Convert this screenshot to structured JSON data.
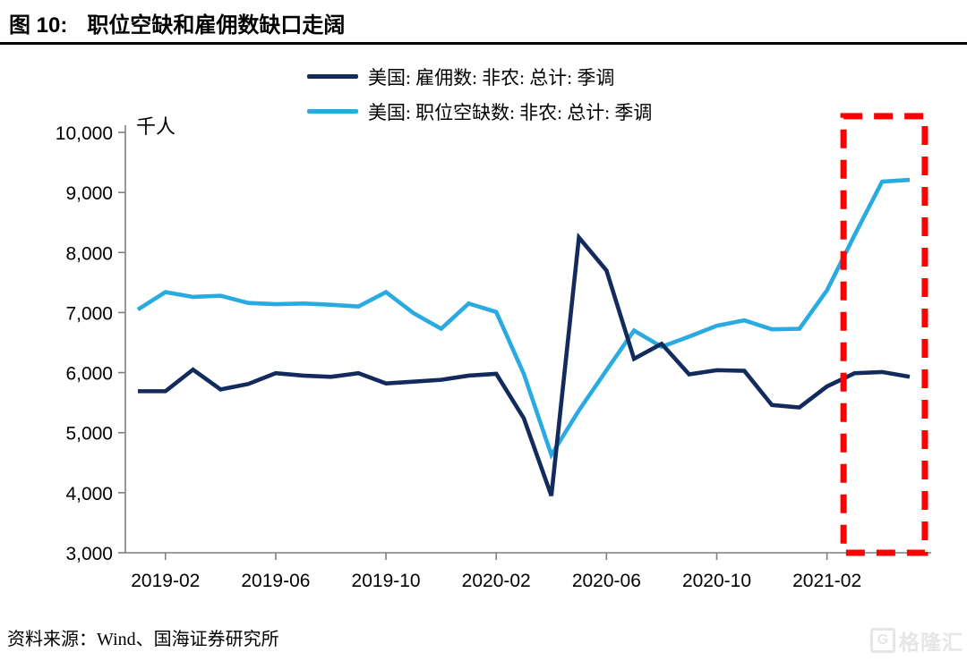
{
  "header": {
    "figure_label": "图 10:",
    "title": "职位空缺和雇佣数缺口走阔"
  },
  "legend": [
    {
      "label": "美国: 雇佣数: 非农: 总计: 季调",
      "color": "#122B5C"
    },
    {
      "label": "美国: 职位空缺数: 非农: 总计: 季调",
      "color": "#29ABE2"
    }
  ],
  "chart_data": {
    "type": "line",
    "title": "职位空缺和雇佣数缺口走阔",
    "unit_label": "千人",
    "xlabel": "",
    "ylabel": "千人",
    "ylim": [
      3000,
      10000
    ],
    "y_ticks": [
      3000,
      4000,
      5000,
      6000,
      7000,
      8000,
      9000,
      10000
    ],
    "grid": false,
    "legend_position": "top-center",
    "x": [
      "2019-01",
      "2019-02",
      "2019-03",
      "2019-04",
      "2019-05",
      "2019-06",
      "2019-07",
      "2019-08",
      "2019-09",
      "2019-10",
      "2019-11",
      "2019-12",
      "2020-01",
      "2020-02",
      "2020-03",
      "2020-04",
      "2020-05",
      "2020-06",
      "2020-07",
      "2020-08",
      "2020-09",
      "2020-10",
      "2020-11",
      "2020-12",
      "2021-01",
      "2021-02",
      "2021-03",
      "2021-04",
      "2021-05"
    ],
    "x_tick_labels": [
      "2019-02",
      "2019-06",
      "2019-10",
      "2020-02",
      "2020-06",
      "2020-10",
      "2021-02"
    ],
    "x_tick_indices": [
      1,
      5,
      9,
      13,
      17,
      21,
      25
    ],
    "series": [
      {
        "name": "美国: 职位空缺数: 非农: 总计: 季调",
        "color": "#29ABE2",
        "values": [
          7050,
          7340,
          7260,
          7280,
          7160,
          7140,
          7150,
          7130,
          7100,
          7340,
          6990,
          6730,
          7150,
          7010,
          5980,
          4630,
          5370,
          6040,
          6700,
          6430,
          6600,
          6780,
          6870,
          6720,
          6730,
          7370,
          8290,
          9180,
          9210
        ]
      },
      {
        "name": "美国: 雇佣数: 非农: 总计: 季调",
        "color": "#122B5C",
        "values": [
          5690,
          5690,
          6050,
          5720,
          5810,
          5990,
          5950,
          5930,
          5990,
          5820,
          5850,
          5880,
          5950,
          5980,
          5240,
          3950,
          8250,
          7700,
          6230,
          6480,
          5970,
          6040,
          6030,
          5460,
          5420,
          5770,
          5990,
          6010,
          5930
        ]
      }
    ],
    "annotation": {
      "shape": "dashed-rect",
      "color": "#FF0000",
      "x_from_index": 25.6,
      "x_to_index": 28.55,
      "y_from": 3000,
      "y_to": 10270
    }
  },
  "footer": {
    "source": "资料来源：Wind、国海证券研究所",
    "watermark_icon": "G",
    "watermark": "格隆汇"
  }
}
